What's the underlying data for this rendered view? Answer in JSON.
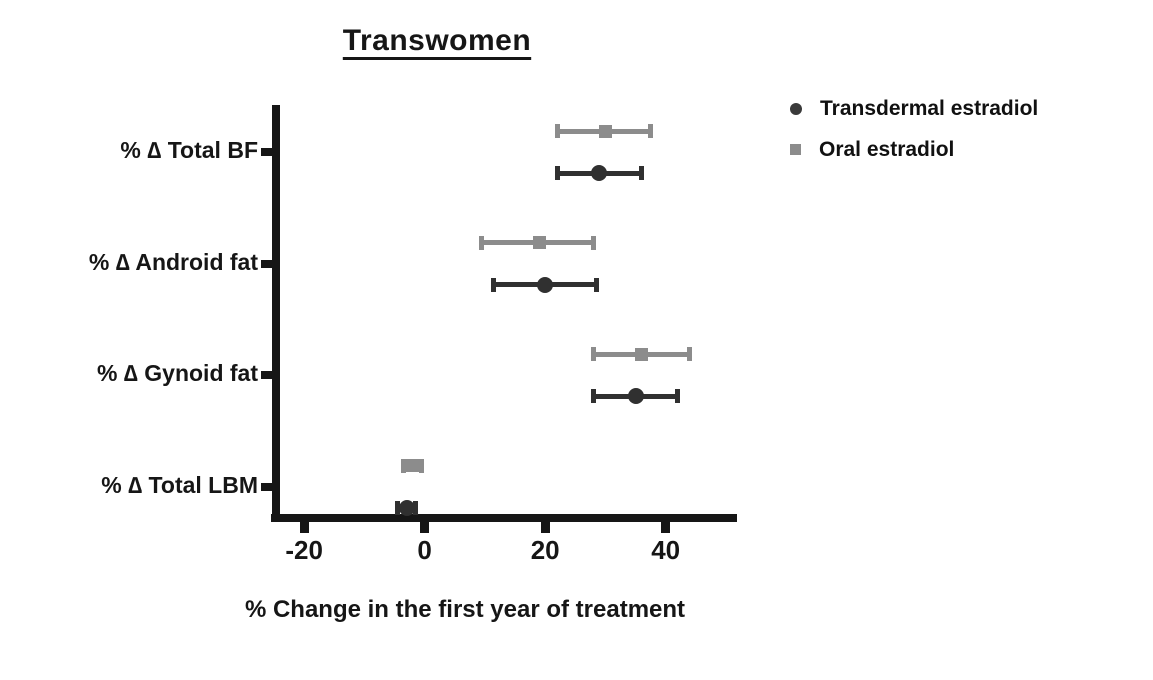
{
  "title": "Transwomen",
  "legend": [
    {
      "name": "Transdermal estradiol",
      "marker": "circle",
      "color": "#3a3a3a"
    },
    {
      "name": "Oral estradiol",
      "marker": "square",
      "color": "#8c8c8c"
    }
  ],
  "chart_data": {
    "type": "scatter",
    "subtype": "horizontal dot plot with error bars (forest-style)",
    "title": "Transwomen",
    "xlabel": "% Change in the first year of treatment",
    "ylabel": "",
    "categories": [
      "% ∆ Total BF",
      "% ∆ Android fat",
      "% ∆ Gynoid fat",
      "% ∆ Total LBM"
    ],
    "xlim": [
      -25,
      51.5
    ],
    "xticks": [
      -20,
      0,
      20,
      40
    ],
    "grid": "off",
    "legend_position": "top-right",
    "series": [
      {
        "name": "Oral estradiol",
        "marker": "square",
        "color": "#8c8c8c",
        "row_within_category": "upper",
        "values": [
          30,
          19,
          36,
          -2
        ],
        "ci_low": [
          22,
          9.5,
          28,
          -3.5
        ],
        "ci_high": [
          37.5,
          28,
          44,
          -0.5
        ]
      },
      {
        "name": "Transdermal estradiol",
        "marker": "circle",
        "color": "#303030",
        "row_within_category": "lower",
        "values": [
          29,
          20,
          35,
          -3
        ],
        "ci_low": [
          22,
          11.5,
          28,
          -4.5
        ],
        "ci_high": [
          36,
          28.5,
          42,
          -1.5
        ]
      }
    ]
  }
}
